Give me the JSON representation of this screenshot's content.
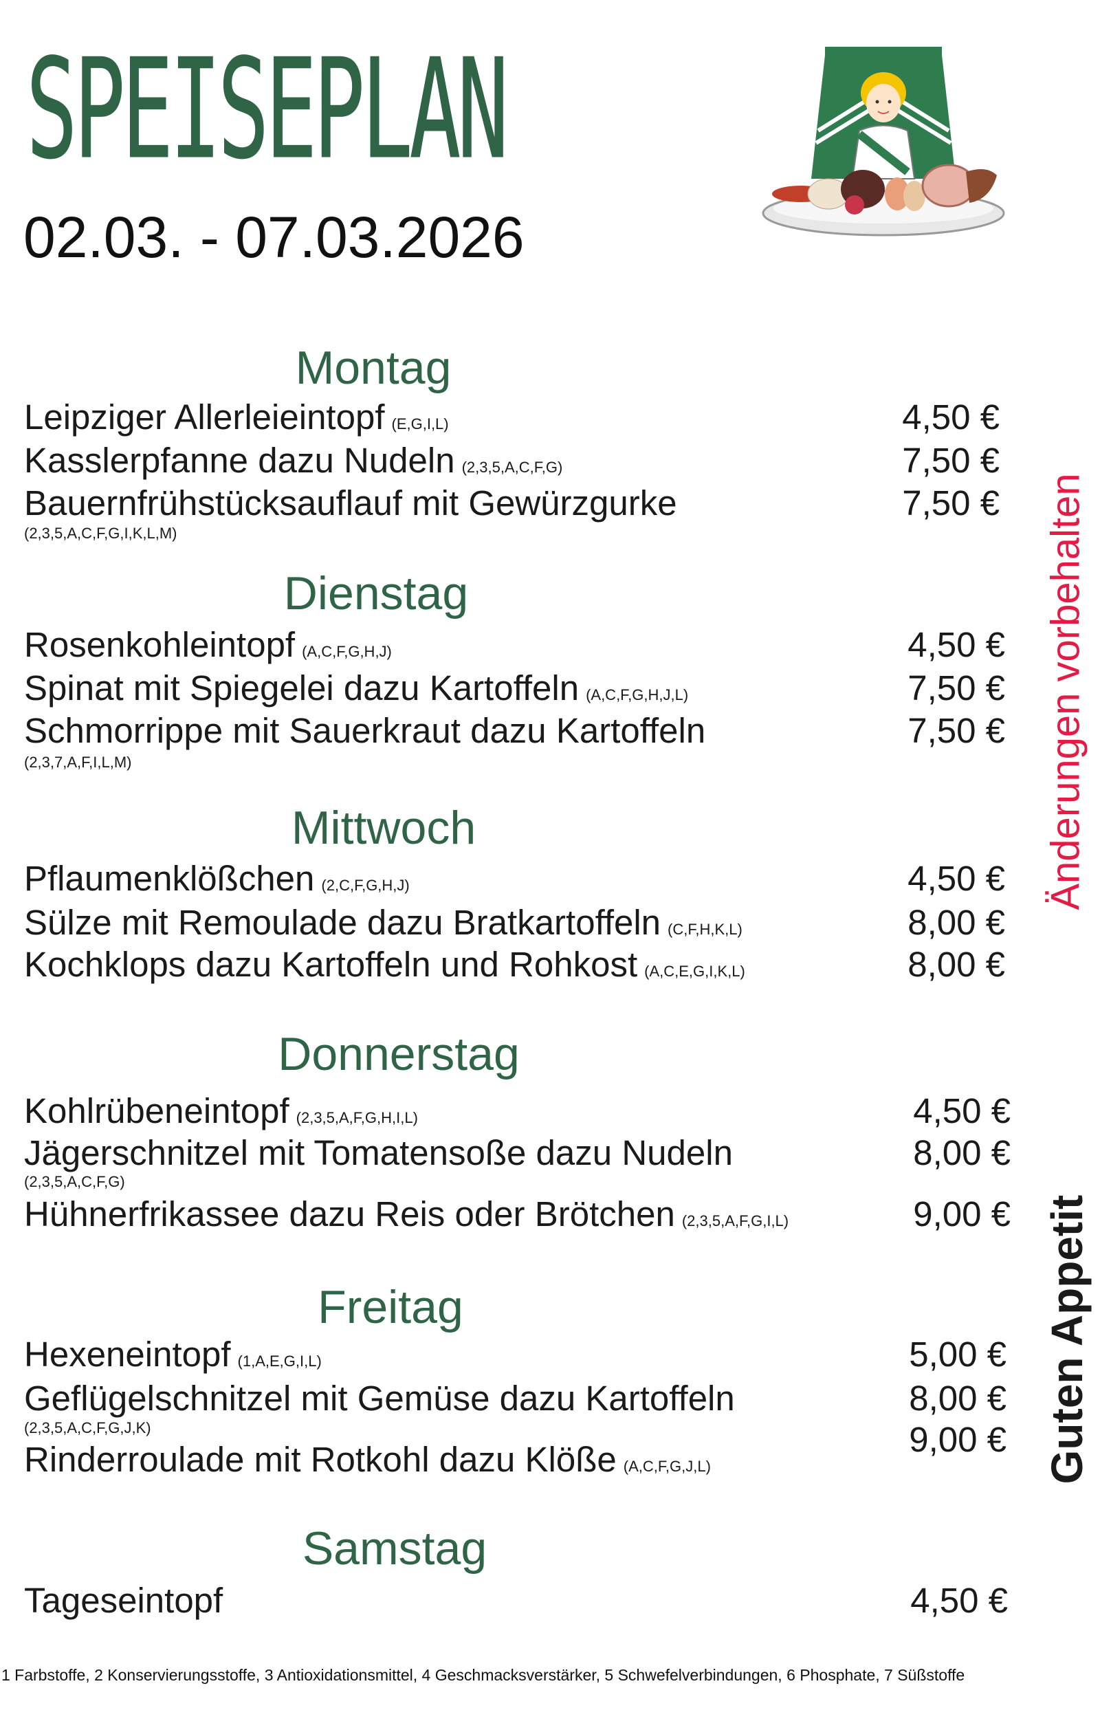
{
  "header": {
    "title": "SPEISEPLAN",
    "date_range": "02.03. - 07.03.2026",
    "logo_icon": "woman-with-sausage-platter-logo"
  },
  "colors": {
    "heading_green": "#2f6446",
    "notice_red": "#e31b45"
  },
  "days": [
    {
      "name": "Montag",
      "items": [
        {
          "dish": "Leipziger Allerleieintopf",
          "allergens": "(E,G,I,L)",
          "price": "4,50 €"
        },
        {
          "dish": "Kasslerpfanne dazu Nudeln",
          "allergens": "(2,3,5,A,C,F,G)",
          "price": "7,50 €"
        },
        {
          "dish": "Bauernfrühstücksauflauf mit Gewürzgurke",
          "allergens": "(2,3,5,A,C,F,G,I,K,L,M)",
          "price": "7,50 €"
        }
      ]
    },
    {
      "name": "Dienstag",
      "items": [
        {
          "dish": "Rosenkohleintopf",
          "allergens": "(A,C,F,G,H,J)",
          "price": "4,50 €"
        },
        {
          "dish": "Spinat mit Spiegelei dazu Kartoffeln",
          "allergens": "(A,C,F,G,H,J,L)",
          "price": "7,50 €"
        },
        {
          "dish": "Schmorrippe mit Sauerkraut dazu Kartoffeln",
          "allergens": "(2,3,7,A,F,I,L,M)",
          "price": "7,50 €"
        }
      ]
    },
    {
      "name": "Mittwoch",
      "items": [
        {
          "dish": "Pflaumenklößchen",
          "allergens": "(2,C,F,G,H,J)",
          "price": "4,50 €"
        },
        {
          "dish": "Sülze mit Remoulade dazu Bratkartoffeln",
          "allergens": "(C,F,H,K,L)",
          "price": "8,00 €"
        },
        {
          "dish": "Kochklops dazu Kartoffeln und Rohkost",
          "allergens": "(A,C,E,G,I,K,L)",
          "price": "8,00 €"
        }
      ]
    },
    {
      "name": "Donnerstag",
      "items": [
        {
          "dish": "Kohlrübeneintopf",
          "allergens": "(2,3,5,A,F,G,H,I,L)",
          "price": "4,50 €"
        },
        {
          "dish": "Jägerschnitzel mit Tomatensoße dazu Nudeln",
          "allergens": "(2,3,5,A,C,F,G)",
          "price": "8,00 €"
        },
        {
          "dish": "Hühnerfrikassee dazu Reis oder Brötchen",
          "allergens": "(2,3,5,A,F,G,I,L)",
          "price": "9,00 €"
        }
      ]
    },
    {
      "name": "Freitag",
      "items": [
        {
          "dish": "Hexeneintopf",
          "allergens": "(1,A,E,G,I,L)",
          "price": "5,00 €"
        },
        {
          "dish": "Geflügelschnitzel mit Gemüse dazu Kartoffeln",
          "allergens": "(2,3,5,A,C,F,G,J,K)",
          "price": "8,00 €"
        },
        {
          "dish": "Rinderroulade mit Rotkohl dazu Klöße",
          "allergens": "(A,C,F,G,J,L)",
          "price": "9,00 €"
        }
      ]
    },
    {
      "name": "Samstag",
      "items": [
        {
          "dish": "Tageseintopf",
          "allergens": "",
          "price": "4,50 €"
        }
      ]
    }
  ],
  "side": {
    "notice": "Änderungen vorbehalten",
    "greeting": "Guten Appetit"
  },
  "footer": {
    "additives": "1 Farbstoffe, 2 Konservierungsstoffe, 3 Antioxidationsmittel, 4 Geschmacksverstärker, 5 Schwefelverbindungen, 6 Phosphate, 7 Süßstoffe"
  }
}
